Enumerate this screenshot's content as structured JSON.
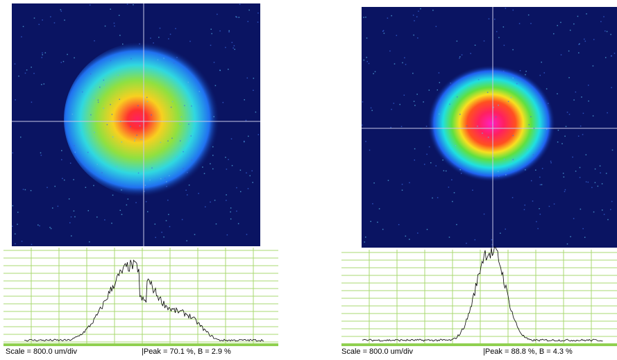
{
  "panels": [
    {
      "scale": "Scale = 800.0 um/div",
      "peak": "|Peak = 70.1 %,  B = 2.9 %"
    },
    {
      "scale": "Scale = 800.0 um/div",
      "peak": "|Peak = 88.8 %,  B = 4.3 %"
    }
  ]
}
